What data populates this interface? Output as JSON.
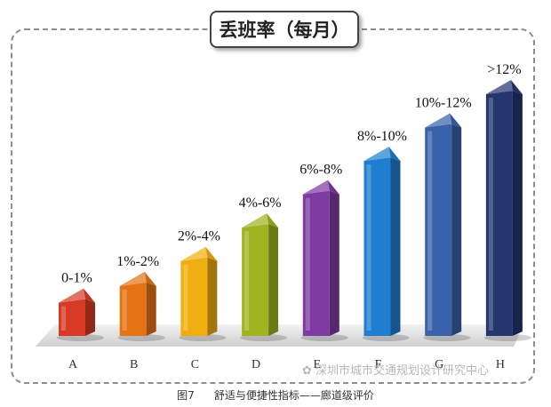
{
  "chart_data": {
    "type": "bar",
    "title": "丢班率（每月）",
    "categories": [
      "A",
      "B",
      "C",
      "D",
      "E",
      "F",
      "G",
      "H"
    ],
    "data_labels": [
      "0-1%",
      "1%-2%",
      "2%-4%",
      "4%-6%",
      "6%-8%",
      "8%-10%",
      "10%-12%",
      ">12%"
    ],
    "values": [
      0.5,
      1.5,
      3,
      5,
      7,
      9,
      11,
      13
    ],
    "colors": [
      "#d83a24",
      "#e57314",
      "#f0ae10",
      "#9fb420",
      "#7e3aa3",
      "#1e7fd0",
      "#3a62a8",
      "#23366e"
    ],
    "grid": false,
    "legend": "none"
  },
  "watermark": "深圳市城市交通规划设计研究中心",
  "caption": {
    "figure_number": "图7",
    "text": "舒适与便捷性指标——廊道级评价"
  }
}
